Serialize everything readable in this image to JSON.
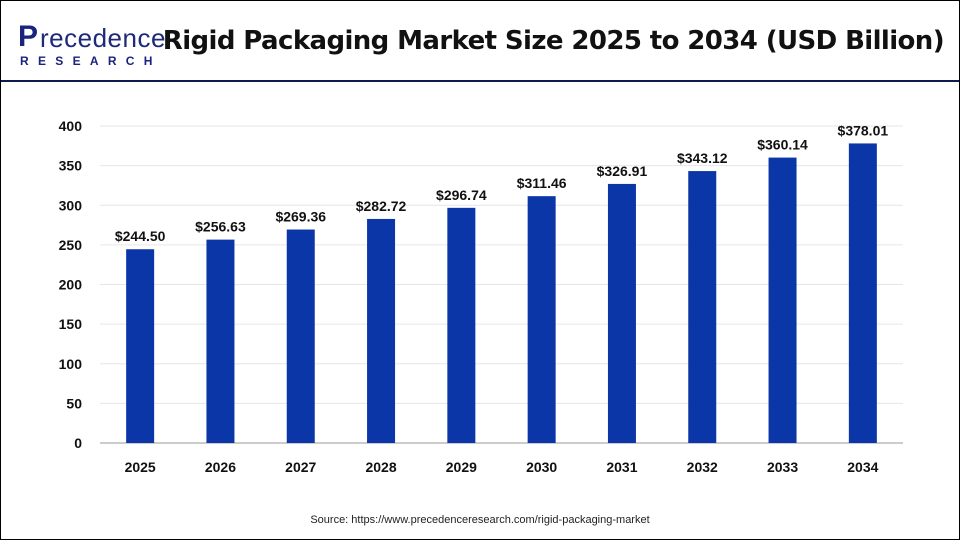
{
  "header": {
    "logo_main": "Precedence",
    "logo_sub": "RESEARCH",
    "title": "Rigid Packaging Market Size 2025 to 2034 (USD Billion)"
  },
  "source": "Source: https://www.precedenceresearch.com/rigid-packaging-market",
  "chart_data": {
    "type": "bar",
    "title": "Rigid Packaging Market Size 2025 to 2034 (USD Billion)",
    "categories": [
      "2025",
      "2026",
      "2027",
      "2028",
      "2029",
      "2030",
      "2031",
      "2032",
      "2033",
      "2034"
    ],
    "values": [
      244.5,
      256.63,
      269.36,
      282.72,
      296.74,
      311.46,
      326.91,
      343.12,
      360.14,
      378.01
    ],
    "labels": [
      "$244.50",
      "$256.63",
      "$269.36",
      "$282.72",
      "$296.74",
      "$311.46",
      "$326.91",
      "$343.12",
      "$360.14",
      "$378.01"
    ],
    "yticks": [
      0,
      50,
      100,
      150,
      200,
      250,
      300,
      350,
      400
    ],
    "ylim": [
      0,
      400
    ],
    "grid": true,
    "bar_color": "#0b36a8"
  }
}
